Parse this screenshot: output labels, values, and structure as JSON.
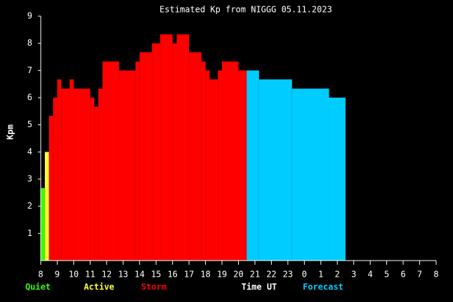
{
  "chart_data": {
    "type": "bar",
    "title": "Estimated Kp from NIGGG 05.11.2023",
    "ylabel": "Kpm",
    "xlabel": "Time UT",
    "xlim": [
      8,
      32
    ],
    "xticks": [
      8,
      9,
      10,
      11,
      12,
      13,
      14,
      15,
      16,
      17,
      18,
      19,
      20,
      21,
      22,
      23,
      {
        "value": 24,
        "label": "0"
      },
      {
        "value": 25,
        "label": "1"
      },
      {
        "value": 26,
        "label": "2"
      },
      {
        "value": 27,
        "label": "3"
      },
      {
        "value": 28,
        "label": "4"
      },
      {
        "value": 29,
        "label": "5"
      },
      {
        "value": 30,
        "label": "6"
      },
      {
        "value": 31,
        "label": "7"
      },
      {
        "value": 32,
        "label": "8"
      }
    ],
    "ylim": [
      0,
      9
    ],
    "yticks": [
      1,
      2,
      3,
      4,
      5,
      6,
      7,
      8,
      9
    ],
    "series": [
      {
        "name": "Quiet",
        "color": "#33ff00",
        "bins": [
          8,
          8.25
        ],
        "values": [
          2.67
        ]
      },
      {
        "name": "Active",
        "color": "#ffff33",
        "bins": [
          8.25,
          8.5
        ],
        "values": [
          4
        ]
      },
      {
        "name": "Storm",
        "color": "#ff0000",
        "bins": [
          8.5,
          8.75,
          9,
          9.25,
          9.75,
          10,
          11,
          11.25,
          11.5,
          11.75,
          12.75,
          13.75,
          14,
          14.75,
          15.25,
          16,
          16.25,
          17,
          17.75,
          18,
          18.25,
          18.75,
          19,
          20,
          20.5
        ],
        "values": [
          5.33,
          6,
          6.67,
          6.33,
          6.67,
          6.33,
          6,
          5.67,
          6.33,
          7.33,
          7,
          7.33,
          7.67,
          8,
          8.33,
          8,
          8.33,
          7.67,
          7.33,
          7,
          6.67,
          7,
          7.33,
          7
        ]
      },
      {
        "name": "Forecast",
        "color": "#00ccff",
        "bins": [
          20.5,
          21.25,
          23.25,
          25.5,
          26.5
        ],
        "values": [
          7,
          6.67,
          6.33,
          6
        ]
      }
    ]
  }
}
